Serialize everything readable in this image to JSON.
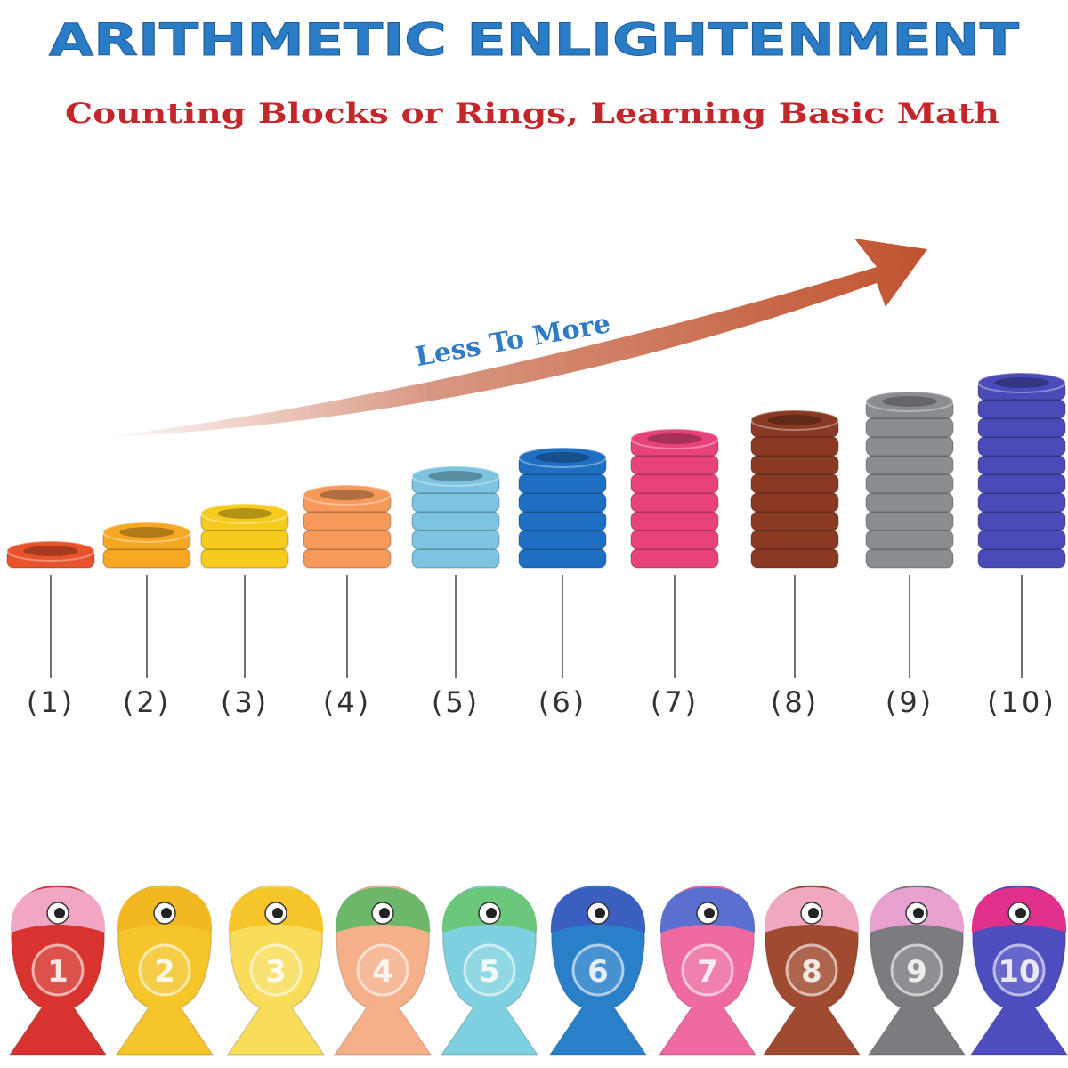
{
  "header": {
    "title": "ARITHMETIC ENLIGHTENMENT",
    "subtitle": "Counting Blocks or Rings, Learning Basic Math"
  },
  "arrow_label": "Less To More",
  "stacks": [
    {
      "label": "(1)",
      "rings": 1,
      "color": "#e8532b"
    },
    {
      "label": "(2)",
      "rings": 2,
      "color": "#f7a823"
    },
    {
      "label": "(3)",
      "rings": 3,
      "color": "#f5cc1e"
    },
    {
      "label": "(4)",
      "rings": 4,
      "color": "#f59a5a"
    },
    {
      "label": "(5)",
      "rings": 5,
      "color": "#7cc4e0"
    },
    {
      "label": "(6)",
      "rings": 6,
      "color": "#1e6fc4"
    },
    {
      "label": "(7)",
      "rings": 7,
      "color": "#e8427a"
    },
    {
      "label": "(8)",
      "rings": 8,
      "color": "#8a3a22"
    },
    {
      "label": "(9)",
      "rings": 9,
      "color": "#8a8d90"
    },
    {
      "label": "(10)",
      "rings": 10,
      "color": "#4a4ab8"
    }
  ],
  "fish": [
    {
      "number": "1",
      "color": "#d8332e",
      "head": "#f2a6c6"
    },
    {
      "number": "2",
      "color": "#f5c52a",
      "head": "#f2b820"
    },
    {
      "number": "3",
      "color": "#f8dc5a",
      "head": "#f5c52a"
    },
    {
      "number": "4",
      "color": "#f5b08a",
      "head": "#6bb86b"
    },
    {
      "number": "5",
      "color": "#7fd0e0",
      "head": "#6bc77a"
    },
    {
      "number": "6",
      "color": "#2a7fc9",
      "head": "#3a5fc0"
    },
    {
      "number": "7",
      "color": "#ee6aa0",
      "head": "#5a6fd0"
    },
    {
      "number": "8",
      "color": "#a04a30",
      "head": "#f0a8c0"
    },
    {
      "number": "9",
      "color": "#7a7c80",
      "head": "#e8a0d0"
    },
    {
      "number": "10",
      "color": "#4d4dc0",
      "head": "#e0308a"
    }
  ]
}
